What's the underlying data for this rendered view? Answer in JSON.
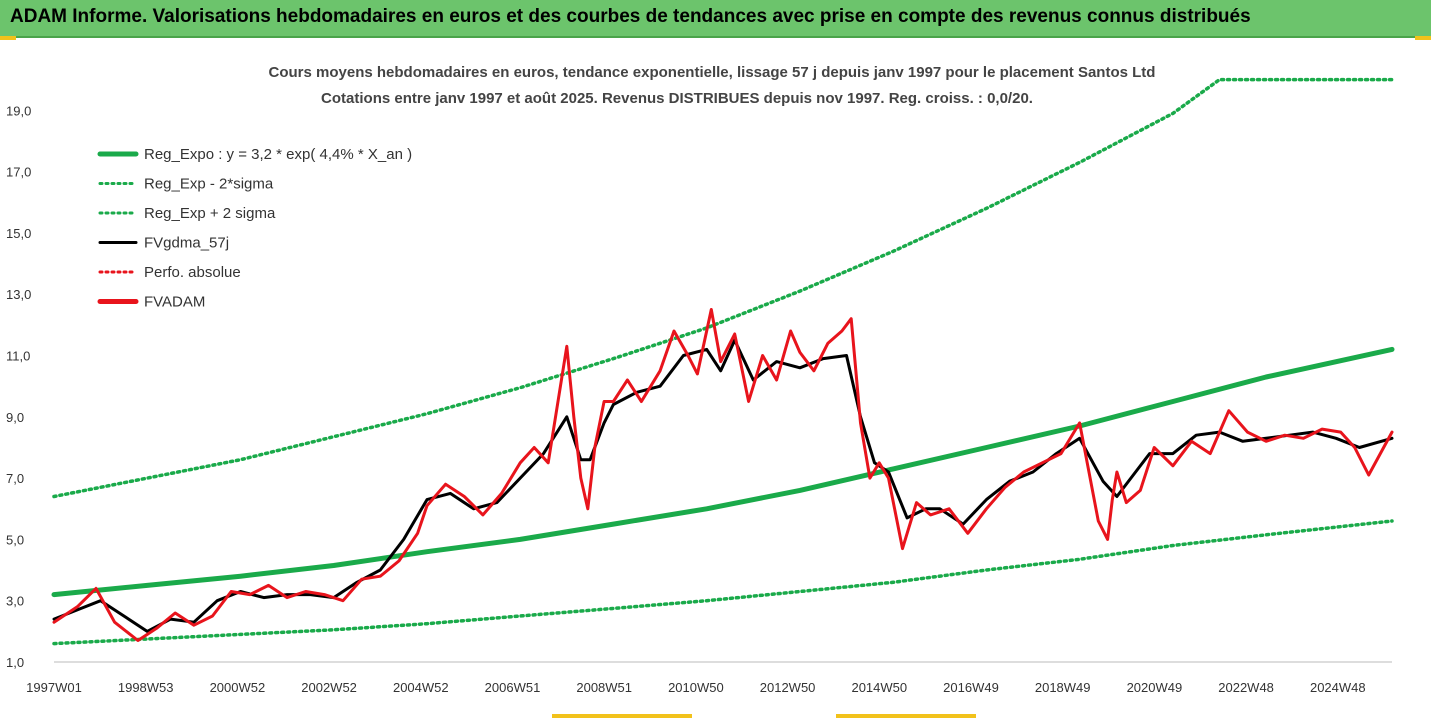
{
  "banner": {
    "title": "ADAM Informe. Valorisations hebdomadaires en euros et des courbes de tendances avec prise en compte des revenus connus distribués"
  },
  "colors": {
    "banner_bg": "#6cc46c",
    "green": "#1aaa4a",
    "black": "#000000",
    "red": "#e8141c",
    "accent_corner": "#f2c21b"
  },
  "chart_data": {
    "type": "line",
    "title": "Cours moyens hebdomadaires en euros, tendance exponentielle, lissage 57 j depuis janv 1997 pour le placement Santos Ltd",
    "subtitle": "Cotations entre janv 1997 et août 2025. Revenus DISTRIBUES depuis nov 1997. Reg. croiss. : 0,0/20.",
    "xlabel": "",
    "ylabel": "",
    "ylim": [
      1.0,
      20.0
    ],
    "xlim": [
      1997.0,
      2025.7
    ],
    "y_ticks": [
      "1,0",
      "3,0",
      "5,0",
      "7,0",
      "9,0",
      "11,0",
      "13,0",
      "15,0",
      "17,0",
      "19,0"
    ],
    "x_ticks": [
      "1997W01",
      "1998W53",
      "2000W52",
      "2002W52",
      "2004W52",
      "2006W51",
      "2008W51",
      "2010W50",
      "2012W50",
      "2014W50",
      "2016W49",
      "2018W49",
      "2020W49",
      "2022W48",
      "2024W48"
    ],
    "grid": false,
    "legend": [
      {
        "label": "Reg_Expo : y = 3,2 * exp( 4,4% *  X_an )",
        "style": "solid-thick",
        "color": "#1aaa4a"
      },
      {
        "label": "Reg_Exp - 2*sigma",
        "style": "dotted",
        "color": "#1aaa4a"
      },
      {
        "label": "Reg_Exp + 2 sigma",
        "style": "dotted",
        "color": "#1aaa4a"
      },
      {
        "label": "FVgdma_57j",
        "style": "solid",
        "color": "#000000"
      },
      {
        "label": "Perfo. absolue",
        "style": "dotted",
        "color": "#e8141c"
      },
      {
        "label": "FVADAM",
        "style": "solid-thick",
        "color": "#e8141c"
      }
    ],
    "legend_position": "top-left",
    "series": [
      {
        "key": "reg_expo",
        "x": [
          1997.0,
          1999.0,
          2001.0,
          2003.0,
          2005.0,
          2007.0,
          2009.0,
          2011.0,
          2013.0,
          2015.0,
          2017.0,
          2019.0,
          2021.0,
          2023.0,
          2025.7
        ],
        "values": [
          3.2,
          3.5,
          3.8,
          4.15,
          4.6,
          5.0,
          5.5,
          6.0,
          6.6,
          7.3,
          8.0,
          8.7,
          9.5,
          10.3,
          11.2
        ]
      },
      {
        "key": "reg_minus",
        "x": [
          1997.0,
          1999.0,
          2001.0,
          2003.0,
          2005.0,
          2007.0,
          2009.0,
          2011.0,
          2013.0,
          2015.0,
          2017.0,
          2019.0,
          2021.0,
          2023.0,
          2025.7
        ],
        "values": [
          1.6,
          1.75,
          1.9,
          2.05,
          2.25,
          2.5,
          2.75,
          3.0,
          3.3,
          3.6,
          4.0,
          4.35,
          4.8,
          5.15,
          5.6
        ]
      },
      {
        "key": "reg_plus",
        "x": [
          1997.0,
          1999.0,
          2001.0,
          2003.0,
          2005.0,
          2007.0,
          2009.0,
          2011.0,
          2013.0,
          2015.0,
          2017.0,
          2019.0,
          2021.0,
          2022.0,
          2025.7
        ],
        "values": [
          6.4,
          7.0,
          7.6,
          8.35,
          9.1,
          9.95,
          10.9,
          11.9,
          13.1,
          14.4,
          15.8,
          17.3,
          18.9,
          20.0,
          20.0
        ]
      },
      {
        "key": "fvgdma",
        "x": [
          1997.0,
          1997.5,
          1998.0,
          1998.5,
          1999.0,
          1999.5,
          2000.0,
          2000.5,
          2001.0,
          2001.5,
          2002.0,
          2002.5,
          2003.0,
          2003.5,
          2004.0,
          2004.5,
          2005.0,
          2005.5,
          2006.0,
          2006.5,
          2007.0,
          2007.5,
          2008.0,
          2008.3,
          2008.5,
          2008.8,
          2009.0,
          2009.5,
          2010.0,
          2010.5,
          2011.0,
          2011.3,
          2011.6,
          2012.0,
          2012.5,
          2013.0,
          2013.5,
          2014.0,
          2014.3,
          2014.6,
          2014.9,
          2015.3,
          2015.7,
          2016.0,
          2016.5,
          2017.0,
          2017.5,
          2018.0,
          2018.5,
          2019.0,
          2019.5,
          2019.8,
          2020.1,
          2020.5,
          2021.0,
          2021.5,
          2022.0,
          2022.5,
          2023.0,
          2023.5,
          2024.0,
          2024.5,
          2025.0,
          2025.7
        ],
        "values": [
          2.4,
          2.7,
          3.0,
          2.5,
          2.0,
          2.4,
          2.3,
          3.0,
          3.3,
          3.1,
          3.2,
          3.2,
          3.1,
          3.6,
          4.0,
          5.0,
          6.3,
          6.5,
          6.0,
          6.2,
          7.0,
          7.8,
          9.0,
          7.6,
          7.6,
          8.8,
          9.4,
          9.8,
          10.0,
          11.0,
          11.2,
          10.5,
          11.5,
          10.2,
          10.8,
          10.6,
          10.9,
          11.0,
          9.0,
          7.5,
          7.2,
          5.7,
          6.0,
          6.0,
          5.5,
          6.3,
          6.9,
          7.2,
          7.8,
          8.3,
          6.9,
          6.4,
          7.0,
          7.8,
          7.8,
          8.4,
          8.5,
          8.2,
          8.3,
          8.4,
          8.5,
          8.3,
          8.0,
          8.3
        ]
      },
      {
        "key": "fvadam",
        "x": [
          1997.0,
          1997.5,
          1997.9,
          1998.3,
          1998.8,
          1999.2,
          1999.6,
          2000.0,
          2000.4,
          2000.8,
          2001.2,
          2001.6,
          2002.0,
          2002.4,
          2002.8,
          2003.2,
          2003.6,
          2004.0,
          2004.4,
          2004.8,
          2005.0,
          2005.4,
          2005.8,
          2006.2,
          2006.6,
          2007.0,
          2007.3,
          2007.6,
          2008.0,
          2008.15,
          2008.3,
          2008.45,
          2008.6,
          2008.8,
          2009.0,
          2009.3,
          2009.6,
          2010.0,
          2010.3,
          2010.6,
          2010.8,
          2011.1,
          2011.3,
          2011.6,
          2011.9,
          2012.2,
          2012.5,
          2012.8,
          2013.0,
          2013.3,
          2013.6,
          2013.9,
          2014.1,
          2014.3,
          2014.5,
          2014.7,
          2014.9,
          2015.2,
          2015.5,
          2015.8,
          2016.2,
          2016.6,
          2017.0,
          2017.4,
          2017.8,
          2018.2,
          2018.6,
          2019.0,
          2019.4,
          2019.6,
          2019.7,
          2019.8,
          2020.0,
          2020.3,
          2020.6,
          2021.0,
          2021.4,
          2021.8,
          2022.2,
          2022.6,
          2023.0,
          2023.4,
          2023.8,
          2024.2,
          2024.6,
          2024.9,
          2025.2,
          2025.7
        ],
        "values": [
          2.3,
          2.8,
          3.4,
          2.3,
          1.7,
          2.1,
          2.6,
          2.2,
          2.5,
          3.3,
          3.2,
          3.5,
          3.1,
          3.3,
          3.2,
          3.0,
          3.7,
          3.8,
          4.3,
          5.2,
          6.1,
          6.8,
          6.4,
          5.8,
          6.5,
          7.5,
          8.0,
          7.5,
          11.3,
          9.0,
          7.0,
          6.0,
          8.0,
          9.5,
          9.5,
          10.2,
          9.5,
          10.5,
          11.8,
          11.0,
          10.4,
          12.5,
          10.8,
          11.7,
          9.5,
          11.0,
          10.2,
          11.8,
          11.1,
          10.5,
          11.4,
          11.8,
          12.2,
          8.8,
          7.0,
          7.5,
          7.0,
          4.7,
          6.2,
          5.8,
          6.0,
          5.2,
          6.0,
          6.7,
          7.2,
          7.5,
          7.8,
          8.8,
          5.6,
          5.0,
          6.3,
          7.2,
          6.2,
          6.6,
          8.0,
          7.4,
          8.2,
          7.8,
          9.2,
          8.5,
          8.2,
          8.4,
          8.3,
          8.6,
          8.5,
          8.0,
          7.1,
          8.5
        ]
      }
    ]
  }
}
